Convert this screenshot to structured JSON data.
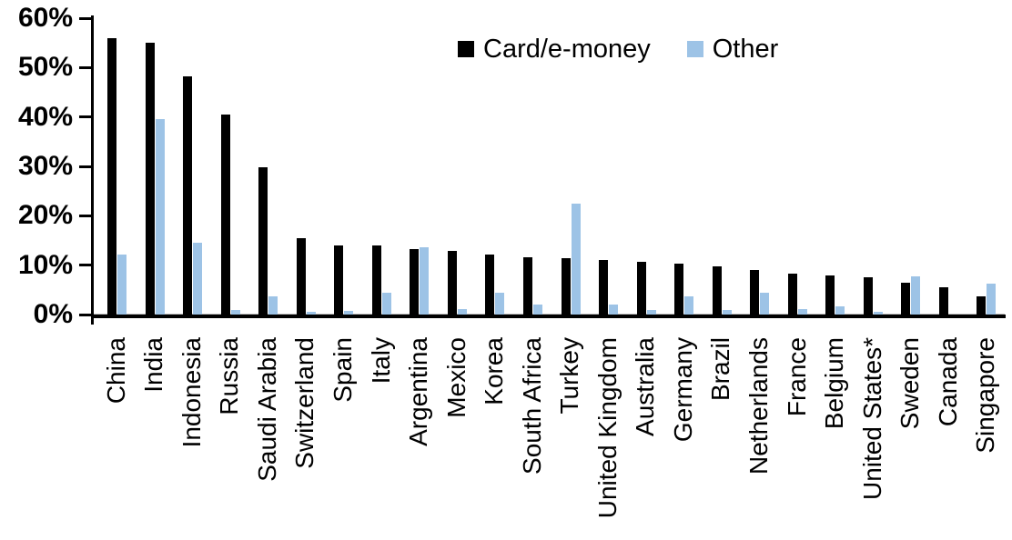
{
  "chart_data": {
    "type": "bar",
    "title": "",
    "xlabel": "",
    "ylabel": "",
    "ylim": [
      0,
      60
    ],
    "ytick_step": 10,
    "ytick_labels": [
      "0%",
      "10%",
      "20%",
      "30%",
      "40%",
      "50%",
      "60%"
    ],
    "grid": false,
    "legend_position": "top-center",
    "categories": [
      "China",
      "India",
      "Indonesia",
      "Russia",
      "Saudi Arabia",
      "Switzerland",
      "Spain",
      "Italy",
      "Argentina",
      "Mexico",
      "Korea",
      "South Africa",
      "Turkey",
      "United Kingdom",
      "Australia",
      "Germany",
      "Brazil",
      "Netherlands",
      "France",
      "Belgium",
      "United States*",
      "Sweden",
      "Canada",
      "Singapore"
    ],
    "series": [
      {
        "name": "Card/e-money",
        "color": "#000000",
        "values": [
          56.0,
          55.0,
          48.3,
          40.5,
          29.8,
          15.4,
          14.0,
          13.9,
          13.3,
          12.8,
          12.1,
          11.6,
          11.4,
          11.0,
          10.6,
          10.3,
          9.8,
          9.0,
          8.3,
          7.9,
          7.5,
          6.5,
          5.6,
          3.6
        ]
      },
      {
        "name": "Other",
        "color": "#9DC3E6",
        "values": [
          12.2,
          39.6,
          14.5,
          0.9,
          3.7,
          0.6,
          0.8,
          4.4,
          13.7,
          1.1,
          4.4,
          2.1,
          22.4,
          2.1,
          0.9,
          3.7,
          1.0,
          4.4,
          1.1,
          1.7,
          0.5,
          7.7,
          0,
          6.3
        ]
      }
    ]
  }
}
